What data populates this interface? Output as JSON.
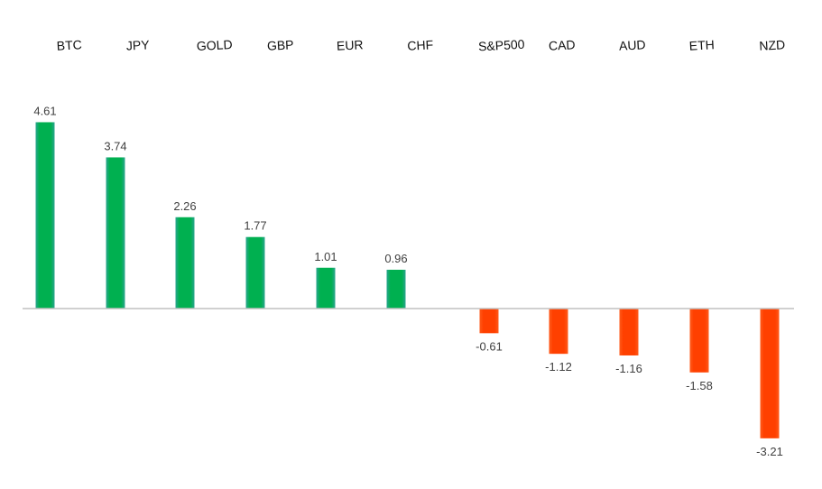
{
  "chart_data": {
    "type": "bar",
    "title": "",
    "xlabel": "",
    "ylabel": "",
    "categories": [
      "BTC",
      "JPY",
      "GOLD",
      "GBP",
      "EUR",
      "CHF",
      "S&P500",
      "CAD",
      "AUD",
      "ETH",
      "NZD"
    ],
    "values": [
      4.61,
      3.74,
      2.26,
      1.77,
      1.01,
      0.96,
      -0.61,
      -1.12,
      -1.16,
      -1.58,
      -3.21
    ],
    "value_labels": [
      "4.61",
      "3.74",
      "2.26",
      "1.77",
      "1.01",
      "0.96",
      "-0.61",
      "-1.12",
      "-1.16",
      "-1.58",
      "-3.21"
    ],
    "ylim": [
      -3.5,
      4.9
    ],
    "grid": false,
    "legend": "none",
    "colors": {
      "positive": "#00b050",
      "positive_edge": "#2ba58f",
      "negative": "#ff4000",
      "axis": "#c0c0c0"
    }
  }
}
